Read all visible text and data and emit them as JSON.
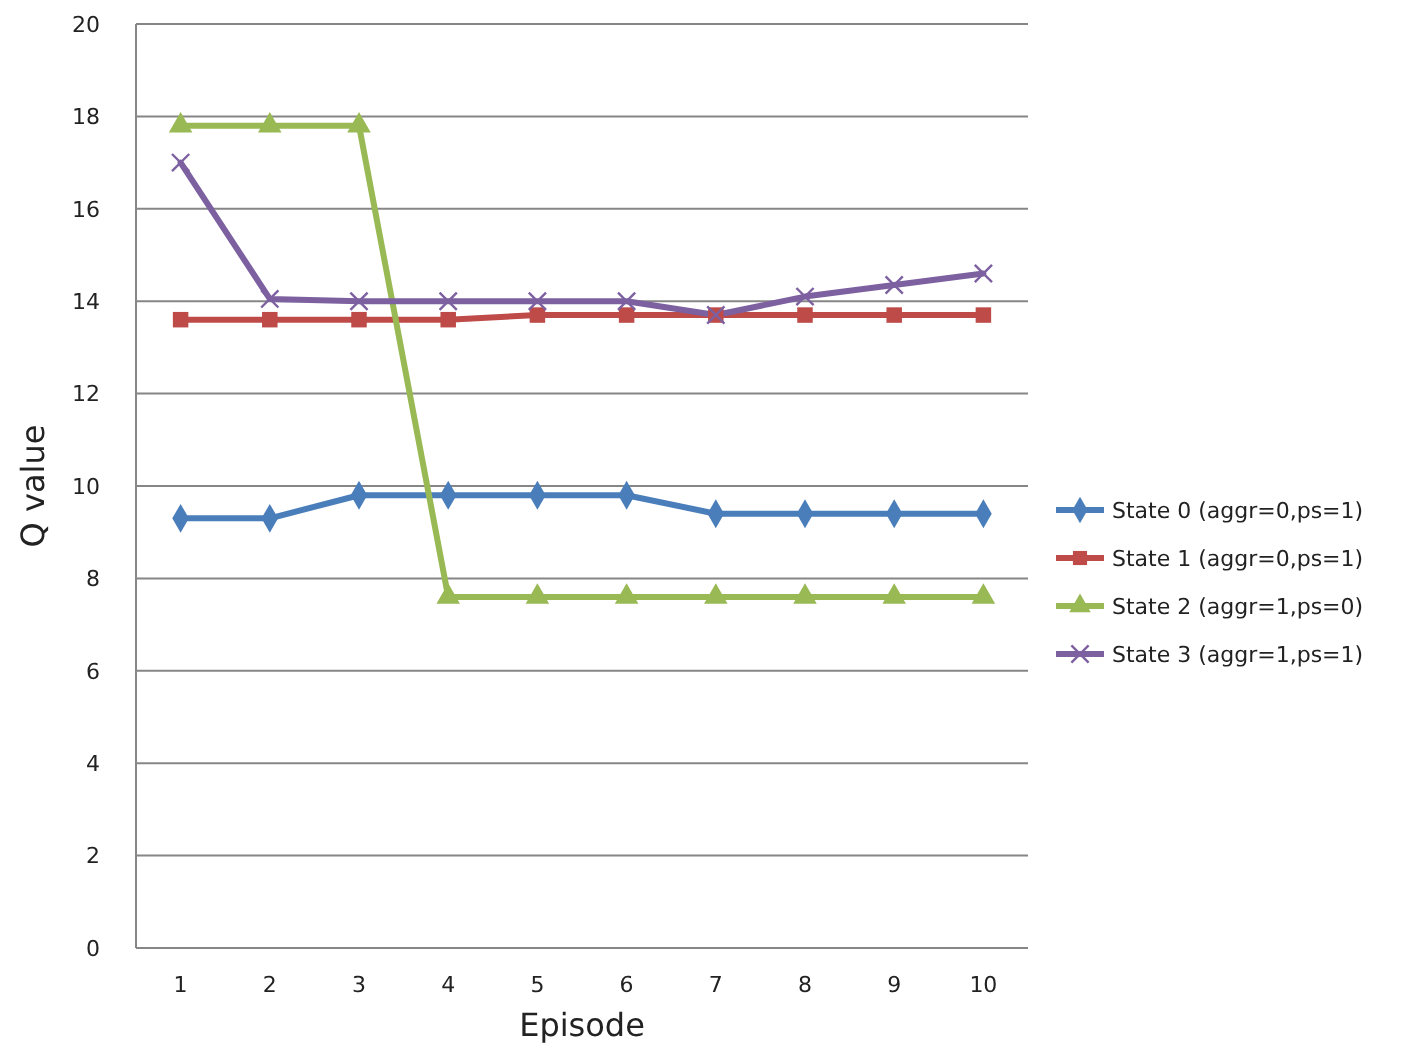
{
  "chart_data": {
    "type": "line",
    "xlabel": "Episode",
    "ylabel": "Q value",
    "categories": [
      "1",
      "2",
      "3",
      "4",
      "5",
      "6",
      "7",
      "8",
      "9",
      "10"
    ],
    "ylim": [
      0,
      20
    ],
    "yticks": [
      0,
      2,
      4,
      6,
      8,
      10,
      12,
      14,
      16,
      18,
      20
    ],
    "grid": "y",
    "legend": "right",
    "series": [
      {
        "name": "State 0 (aggr=0,ps=1)",
        "color": "#4a7ebb",
        "marker": "diamond",
        "values": [
          9.3,
          9.3,
          9.8,
          9.8,
          9.8,
          9.8,
          9.4,
          9.4,
          9.4,
          9.4
        ]
      },
      {
        "name": "State 1 (aggr=0,ps=1)",
        "color": "#be4b48",
        "marker": "square",
        "values": [
          13.6,
          13.6,
          13.6,
          13.6,
          13.7,
          13.7,
          13.7,
          13.7,
          13.7,
          13.7
        ]
      },
      {
        "name": "State 2 (aggr=1,ps=0)",
        "color": "#98b954",
        "marker": "triangle",
        "values": [
          17.8,
          17.8,
          17.8,
          7.6,
          7.6,
          7.6,
          7.6,
          7.6,
          7.6,
          7.6
        ]
      },
      {
        "name": "State 3 (aggr=1,ps=1)",
        "color": "#7d60a0",
        "marker": "cross",
        "values": [
          17,
          14.05,
          14,
          14,
          14,
          14,
          13.7,
          14.1,
          14.35,
          14.6
        ]
      }
    ]
  }
}
